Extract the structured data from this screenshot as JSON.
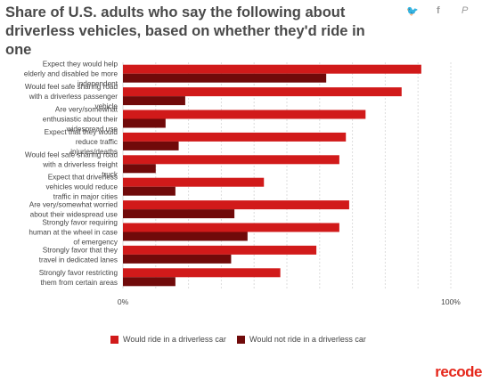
{
  "title": "Share of U.S. adults who say the following about driverless vehicles, based on whether they'd ride in one",
  "social": {
    "twitter": "🐦",
    "facebook": "f",
    "pinterest": "P"
  },
  "brand": "recode",
  "colors": {
    "ride": "#d11a1a",
    "not_ride": "#700a0a",
    "brand": "#e5261a",
    "grid": "#dcdcdc"
  },
  "chart_data": {
    "type": "bar",
    "orientation": "horizontal",
    "categories": [
      "Expect they would help elderly and disabled be more independent",
      "Would feel safe sharing road with a driverless passenger vehicle",
      "Are very/somewhat enthusiastic about their widespread use",
      "Expect that they would reduce traffic injuries/deaths",
      "Would feel safe sharing road with a driverless freight truck",
      "Expect that driverless vehicles would reduce traffic in major cities",
      "Are very/somewhat worried about their widespread use",
      "Strongly favor requiring human at the wheel in case of emergency",
      "Strongly favor that they travel in dedicated lanes",
      "Strongly favor restricting them from certain areas"
    ],
    "series": [
      {
        "name": "Would ride in a driverless car",
        "values": [
          91,
          85,
          74,
          68,
          66,
          43,
          69,
          66,
          59,
          48
        ]
      },
      {
        "name": "Would not ride in a driverless car",
        "values": [
          62,
          19,
          13,
          17,
          10,
          16,
          34,
          38,
          33,
          16
        ]
      }
    ],
    "xlim": [
      0,
      100
    ],
    "xticks": [
      "0%",
      "100%"
    ],
    "grid": true,
    "legend_position": "bottom"
  }
}
